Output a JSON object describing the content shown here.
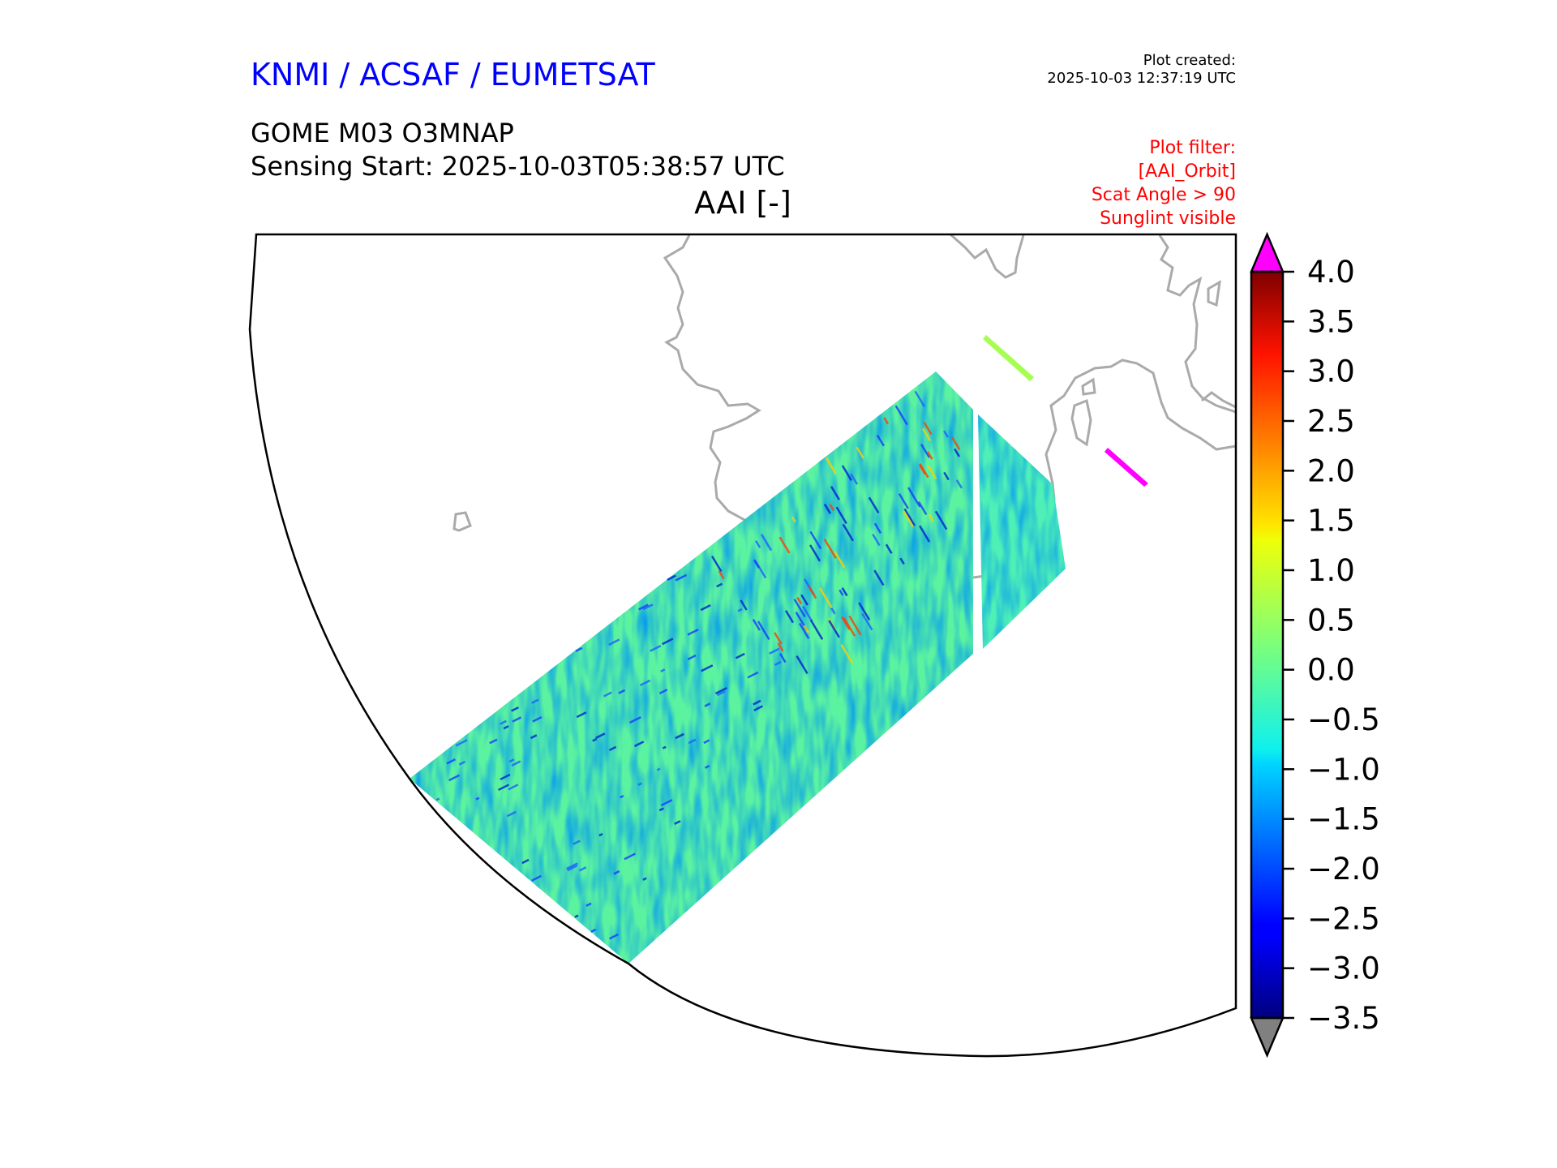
{
  "header": {
    "organisation": "KNMI / ACSAF / EUMETSAT",
    "plot_created_label": "Plot created:",
    "plot_created_value": "2025-10-03 12:37:19 UTC",
    "product": "GOME M03 O3MNAP",
    "sensing_start": "Sensing Start: 2025-10-03T05:38:57 UTC",
    "variable": "AAI [-]"
  },
  "filter": {
    "lines": [
      "Plot filter:",
      "[AAI_Orbit]",
      "Scat Angle > 90",
      "Sunglint visible"
    ]
  },
  "chart_data": {
    "type": "heatmap",
    "title": "AAI [-]",
    "colormap": "jet",
    "vmin": -3.5,
    "vmax": 4.0,
    "extend": "both",
    "over_color": "#ff00ff",
    "under_color": "#808080",
    "coastline_color": "#aaaaaa",
    "colorbar_ticks": [
      4.0,
      3.5,
      3.0,
      2.5,
      2.0,
      1.5,
      1.0,
      0.5,
      0.0,
      -0.5,
      -1.0,
      -1.5,
      -2.0,
      -2.5,
      -3.0,
      -3.5
    ],
    "colorbar_tick_labels": [
      "4.0",
      "3.5",
      "3.0",
      "2.5",
      "2.0",
      "1.5",
      "1.0",
      "0.5",
      "0.0",
      "−0.5",
      "−1.0",
      "−1.5",
      "−2.0",
      "−2.5",
      "−3.0",
      "−3.5"
    ],
    "typical_value_range": [
      -1.5,
      1.0
    ]
  }
}
